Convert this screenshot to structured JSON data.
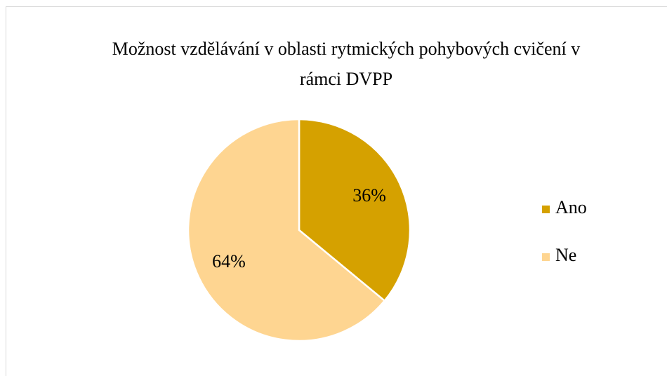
{
  "chart_data": {
    "type": "pie",
    "title": "Možnost vzdělávání v oblasti rytmických pohybových cvičení v rámci DVPP",
    "categories": [
      "Ano",
      "Ne"
    ],
    "values": [
      36,
      64
    ],
    "value_labels": [
      "36%",
      "64%"
    ],
    "colors": [
      "#d5a100",
      "#fed591"
    ],
    "legend": "right"
  }
}
